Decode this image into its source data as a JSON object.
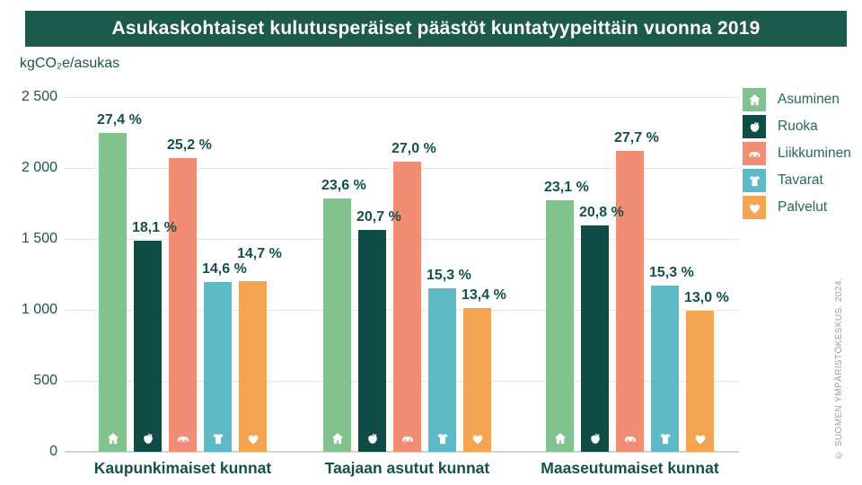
{
  "credit": "© SUOMEN YMPÄRISTÖKESKUS. 2024.",
  "colors": {
    "banner_bg": "#1d5a4b",
    "axis_text": "#1d534e",
    "label_text": "#15504b",
    "grid_line": "#e7e4e1",
    "baseline": "#d5d1cd",
    "credit_text": "#9e9e9c",
    "background": "#ffffff"
  },
  "chart_data": {
    "type": "bar",
    "title": "Asukaskohtaiset kulutusperäiset päästöt kuntatyypeittäin vuonna 2019",
    "ylabel": "kgCO₂e/asukas",
    "xlabel": "",
    "ylim": [
      0,
      2500
    ],
    "ytick_values": [
      0,
      500,
      1000,
      1500,
      2000,
      2500
    ],
    "ytick_labels": [
      "0",
      "500",
      "1 000",
      "1 500",
      "2 000",
      "2 500"
    ],
    "grid": true,
    "legend_position": "right",
    "categories": [
      "Kaupunkimaiset kunnat",
      "Taajaan asutut kunnat",
      "Maaseutumaiset kunnat"
    ],
    "series": [
      {
        "name": "Asuminen",
        "icon": "house-icon",
        "color": "#82c28f",
        "values": [
          2250,
          1785,
          1770
        ],
        "percent_labels": [
          "27,4 %",
          "23,6 %",
          "23,1 %"
        ]
      },
      {
        "name": "Ruoka",
        "icon": "apple-icon",
        "color": "#0f4c46",
        "values": [
          1485,
          1565,
          1595
        ],
        "percent_labels": [
          "18,1 %",
          "20,7 %",
          "20,8 %"
        ]
      },
      {
        "name": "Liikkuminen",
        "icon": "car-icon",
        "color": "#ef8d75",
        "values": [
          2070,
          2045,
          2120
        ],
        "percent_labels": [
          "25,2 %",
          "27,0 %",
          "27,7 %"
        ]
      },
      {
        "name": "Tavarat",
        "icon": "tshirt-icon",
        "color": "#5fbac8",
        "values": [
          1195,
          1155,
          1170
        ],
        "percent_labels": [
          "14,6 %",
          "15,3 %",
          "15,3 %"
        ]
      },
      {
        "name": "Palvelut",
        "icon": "heart-icon",
        "color": "#f4a553",
        "values": [
          1205,
          1015,
          995
        ],
        "percent_labels": [
          "14,7 %",
          "13,4 %",
          "13,0 %"
        ]
      }
    ]
  }
}
